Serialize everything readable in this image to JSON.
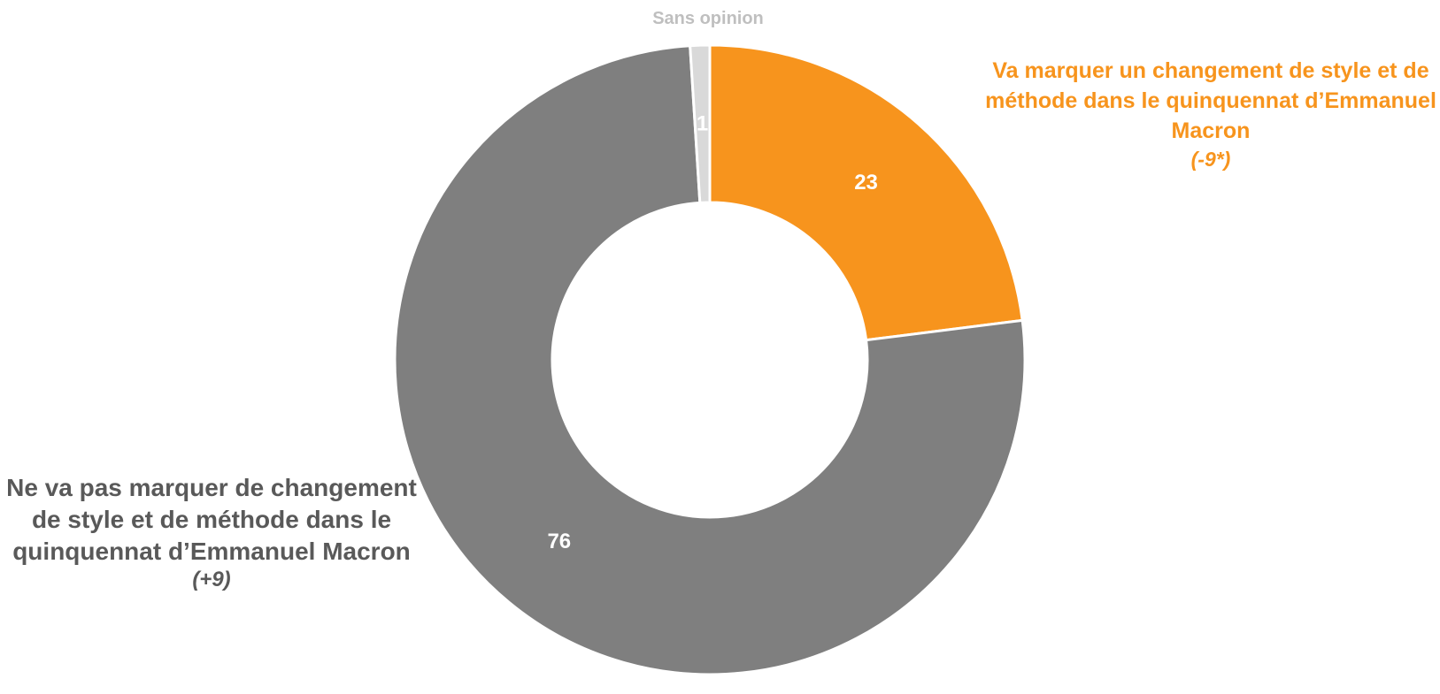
{
  "chart_data": {
    "type": "pie",
    "variant": "donut",
    "slices": [
      {
        "name": "Va marquer un changement de style et de méthode dans le quinquennat d’Emmanuel Macron",
        "value": 23,
        "value_label": "23",
        "delta": "(-9*)",
        "color": "#f7941d",
        "label_color": "#f7941d"
      },
      {
        "name": "Ne va pas marquer de changement de style et de méthode dans le quinquennat d’Emmanuel Macron",
        "value": 76,
        "value_label": "76",
        "delta": "(+9)",
        "color": "#7f7f7f",
        "label_color": "#595959"
      },
      {
        "name": "Sans opinion",
        "value": 1,
        "value_label": "1",
        "delta": "",
        "color": "#d9d9d9",
        "label_color": "#bfbfbf"
      }
    ],
    "start": "top",
    "direction": "clockwise"
  }
}
